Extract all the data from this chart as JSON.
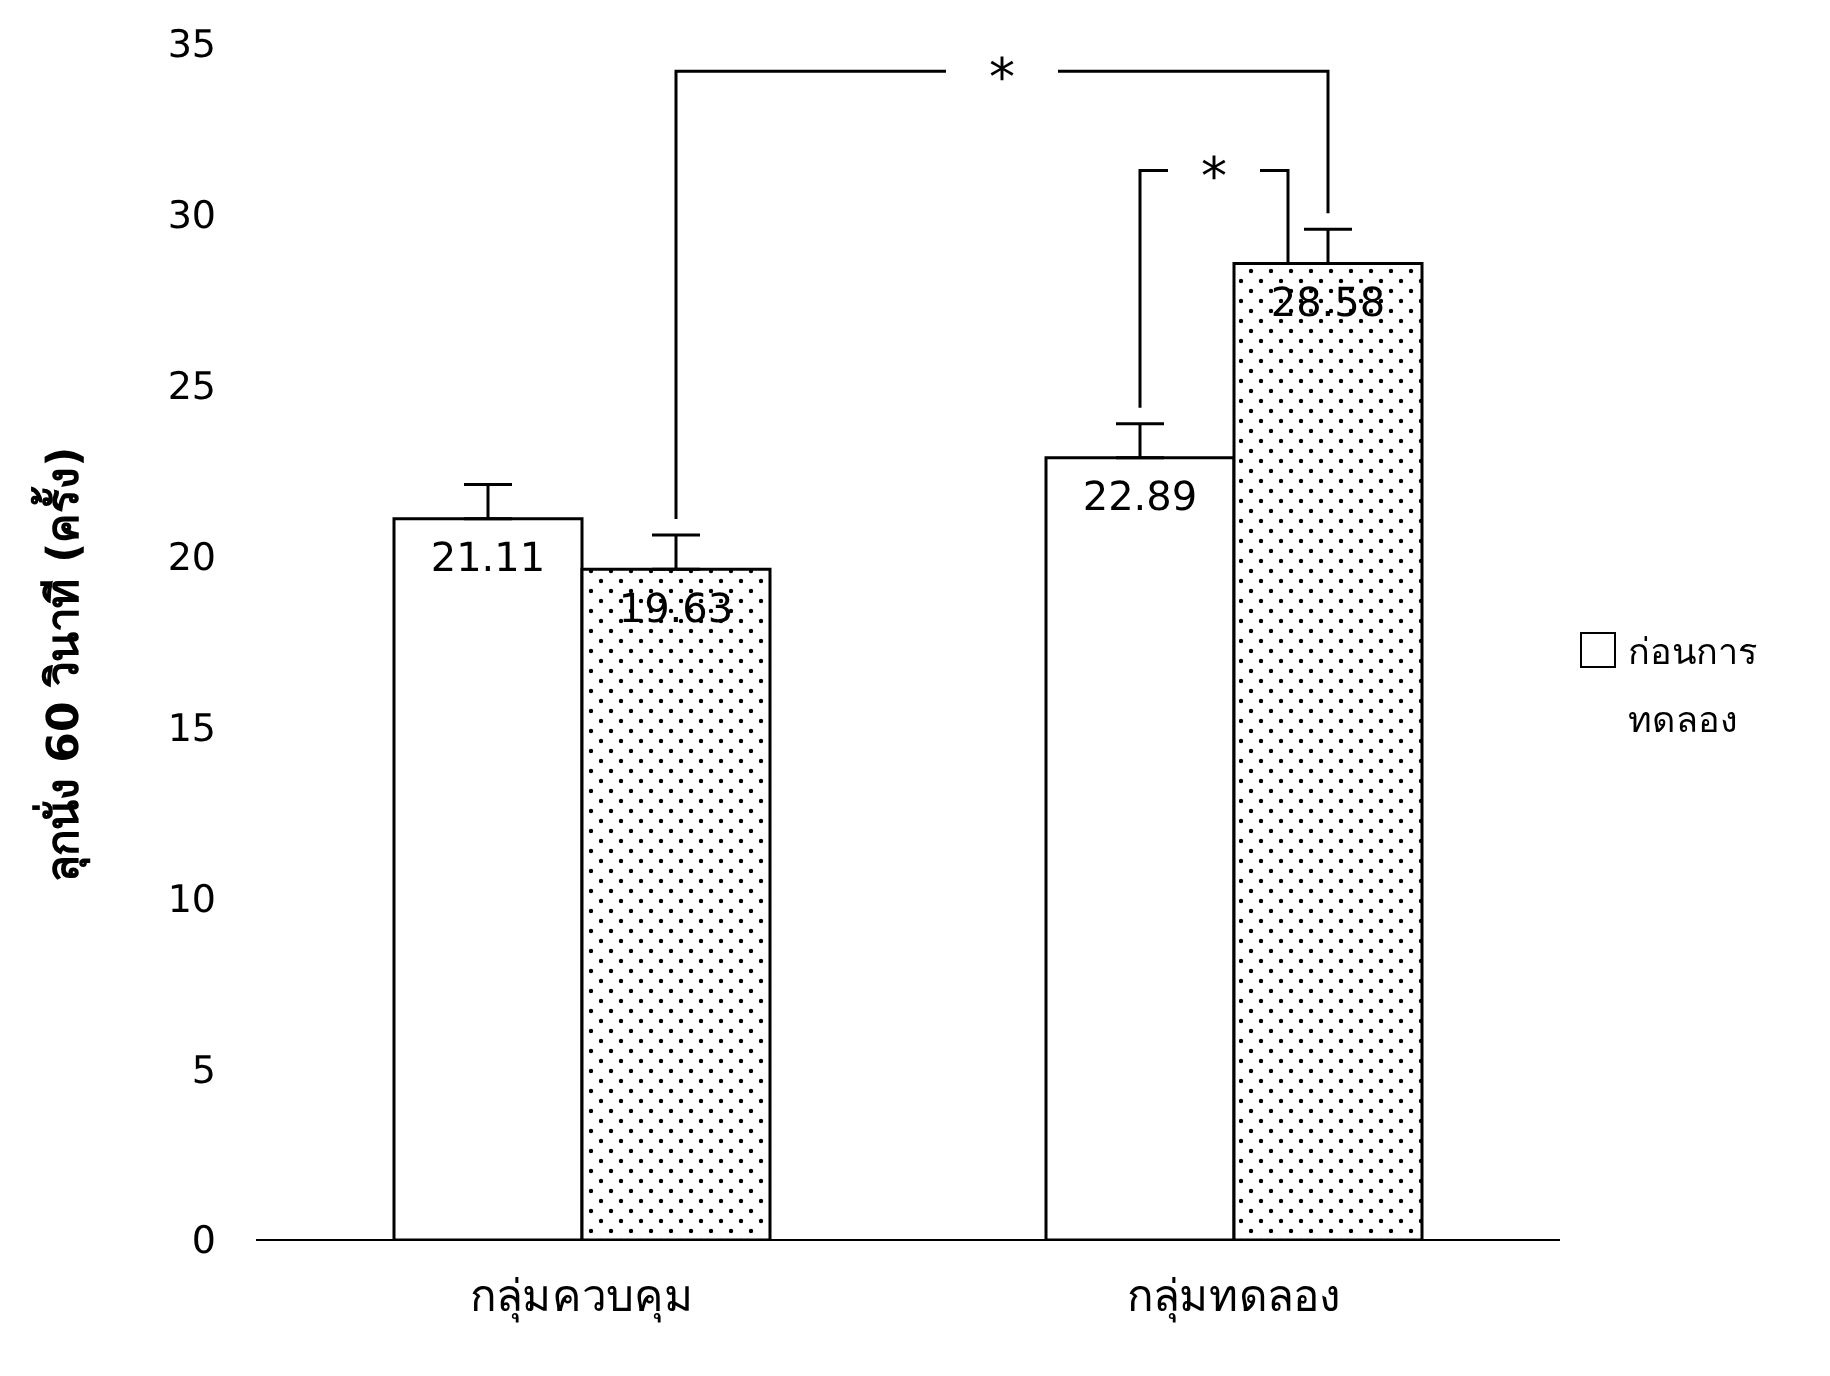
{
  "chart_data": {
    "type": "bar",
    "ylabel": "ลุกนั่ง 60 วินาที (ครั้ง)",
    "categories": [
      "กลุ่มควบคุม",
      "กลุ่มทดลอง"
    ],
    "series": [
      {
        "name": "ก่อนการทดลอง",
        "color": "#ffffff",
        "values": [
          21.11,
          22.89
        ],
        "errors": [
          1.0,
          1.0
        ]
      },
      {
        "color": "#000000",
        "values": [
          19.63,
          28.58
        ],
        "errors": [
          1.0,
          1.0
        ]
      }
    ],
    "ylim": [
      0,
      35
    ],
    "yticks": [
      0,
      5,
      10,
      15,
      20,
      25,
      30,
      35
    ],
    "legend": "right",
    "data_labels": true,
    "annotations": [
      "*",
      {
        "text": "*",
        "x": "กลุ่มทดลอง",
        "y": 28.58
      }
    ]
  }
}
